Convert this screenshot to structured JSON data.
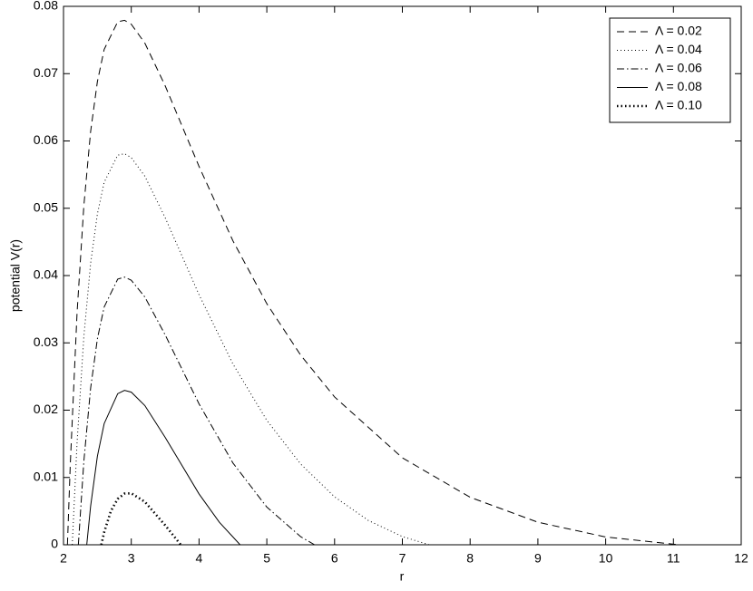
{
  "chart_data": {
    "type": "line",
    "xlabel": "r",
    "ylabel": "potential V(r)",
    "xlim": [
      2,
      12
    ],
    "ylim": [
      0,
      0.08
    ],
    "xticks": [
      2,
      3,
      4,
      5,
      6,
      7,
      8,
      9,
      10,
      11,
      12
    ],
    "yticks": [
      0,
      0.01,
      0.02,
      0.03,
      0.04,
      0.05,
      0.06,
      0.07,
      0.08
    ],
    "legend": "upper right",
    "series": [
      {
        "name": "Λ = 0.02",
        "color": "#000000",
        "style": "dashed",
        "x": [
          2.058,
          2.1,
          2.2,
          2.3,
          2.4,
          2.5,
          2.6,
          2.8,
          2.9,
          3.0,
          3.2,
          3.5,
          4,
          4.5,
          5,
          5.5,
          6,
          7,
          8,
          9,
          10,
          11.09
        ],
        "values": [
          0,
          0.01195,
          0.03446,
          0.05035,
          0.06139,
          0.06882,
          0.0736,
          0.07771,
          0.07793,
          0.07734,
          0.07454,
          0.0682,
          0.05621,
          0.04516,
          0.03582,
          0.02817,
          0.02196,
          0.01292,
          0.00706,
          0.00335,
          0.00116,
          0
        ]
      },
      {
        "name": "Λ = 0.04",
        "color": "#000000",
        "style": "dotted",
        "x": [
          2.129,
          2.2,
          2.3,
          2.4,
          2.5,
          2.6,
          2.8,
          2.9,
          3.0,
          3.2,
          3.5,
          4,
          4.5,
          5,
          5.5,
          6,
          6.5,
          7,
          7.397
        ],
        "values": [
          0,
          0.01515,
          0.0309,
          0.04181,
          0.04916,
          0.05386,
          0.05789,
          0.0581,
          0.05752,
          0.05477,
          0.0486,
          0.03715,
          0.02686,
          0.01849,
          0.01199,
          0.00712,
          0.0036,
          0.00122,
          0
        ]
      },
      {
        "name": "Λ = 0.06",
        "color": "#000000",
        "style": "dashdot",
        "x": [
          2.219,
          2.3,
          2.4,
          2.5,
          2.6,
          2.8,
          2.9,
          3.0,
          3.2,
          3.5,
          4,
          4.5,
          5,
          5.5,
          5.705
        ],
        "values": [
          0,
          0.01238,
          0.02326,
          0.0306,
          0.03533,
          0.03947,
          0.03977,
          0.0393,
          0.03682,
          0.03119,
          0.02093,
          0.01215,
          0.0056,
          0.0012,
          0
        ]
      },
      {
        "name": "Λ = 0.08",
        "color": "#000000",
        "style": "solid",
        "x": [
          2.343,
          2.4,
          2.5,
          2.6,
          2.8,
          2.9,
          3.0,
          3.2,
          3.5,
          4,
          4.3,
          4.606
        ],
        "values": [
          0,
          0.00573,
          0.01316,
          0.018,
          0.02245,
          0.02294,
          0.02268,
          0.02069,
          0.01596,
          0.00755,
          0.00334,
          0
        ]
      },
      {
        "name": "Λ = 0.10",
        "color": "#000000",
        "style": "bold-dotted",
        "x": [
          2.558,
          2.6,
          2.7,
          2.8,
          2.9,
          3.0,
          3.2,
          3.5,
          3.73
        ],
        "values": [
          0,
          0.00187,
          0.00503,
          0.00682,
          0.0076,
          0.00765,
          0.00639,
          0.0029,
          0
        ]
      }
    ]
  }
}
